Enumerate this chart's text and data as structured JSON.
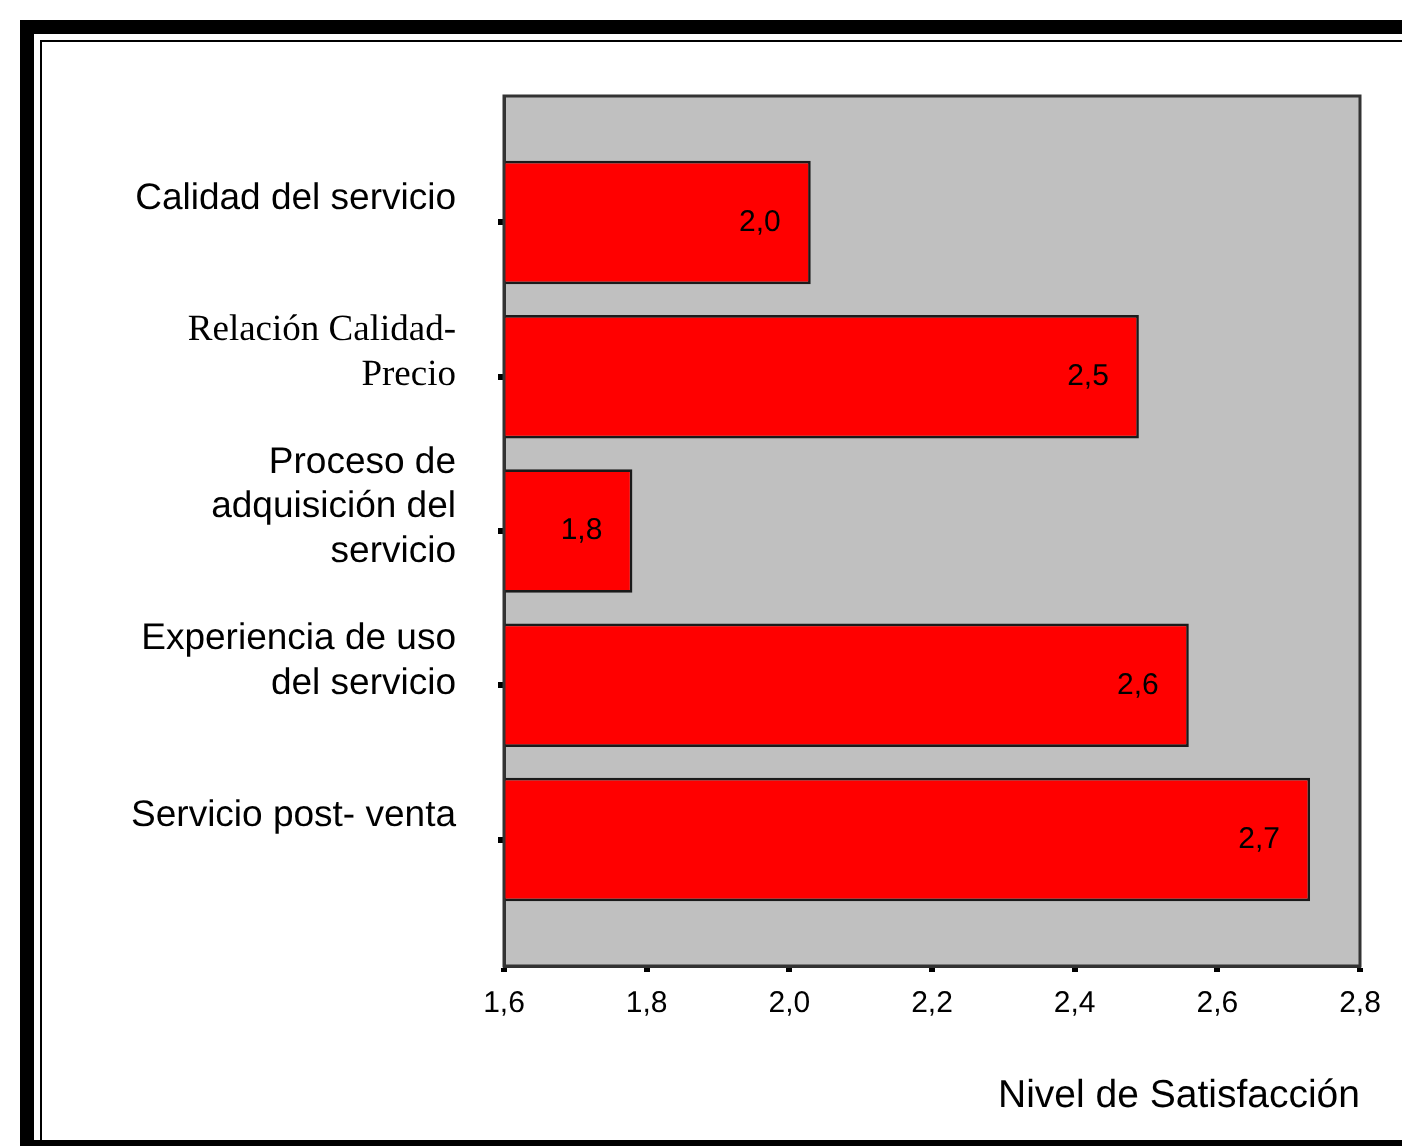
{
  "chart_data": {
    "type": "bar",
    "orientation": "horizontal",
    "categories": [
      "Calidad del servicio",
      "Relación Calidad-Precio",
      "Proceso de adquisición del servicio",
      "Experiencia de uso del servicio",
      "Servicio post- venta"
    ],
    "values": [
      2.03,
      2.49,
      1.78,
      2.56,
      2.73
    ],
    "color": "#ff0000",
    "value_labels": [
      "2,0",
      "2,5",
      "1,8",
      "2,6",
      "2,7"
    ],
    "xlabel": "Nivel de Satisfacción",
    "xlim": [
      1.6,
      2.8
    ],
    "xticks": [
      {
        "value": 1.6,
        "label": "1,6"
      },
      {
        "value": 1.8,
        "label": "1,8"
      },
      {
        "value": 2.0,
        "label": "2,0"
      },
      {
        "value": 2.2,
        "label": "2,2"
      },
      {
        "value": 2.4,
        "label": "2,4"
      },
      {
        "value": 2.6,
        "label": "2,6"
      },
      {
        "value": 2.8,
        "label": "2,8"
      }
    ]
  }
}
